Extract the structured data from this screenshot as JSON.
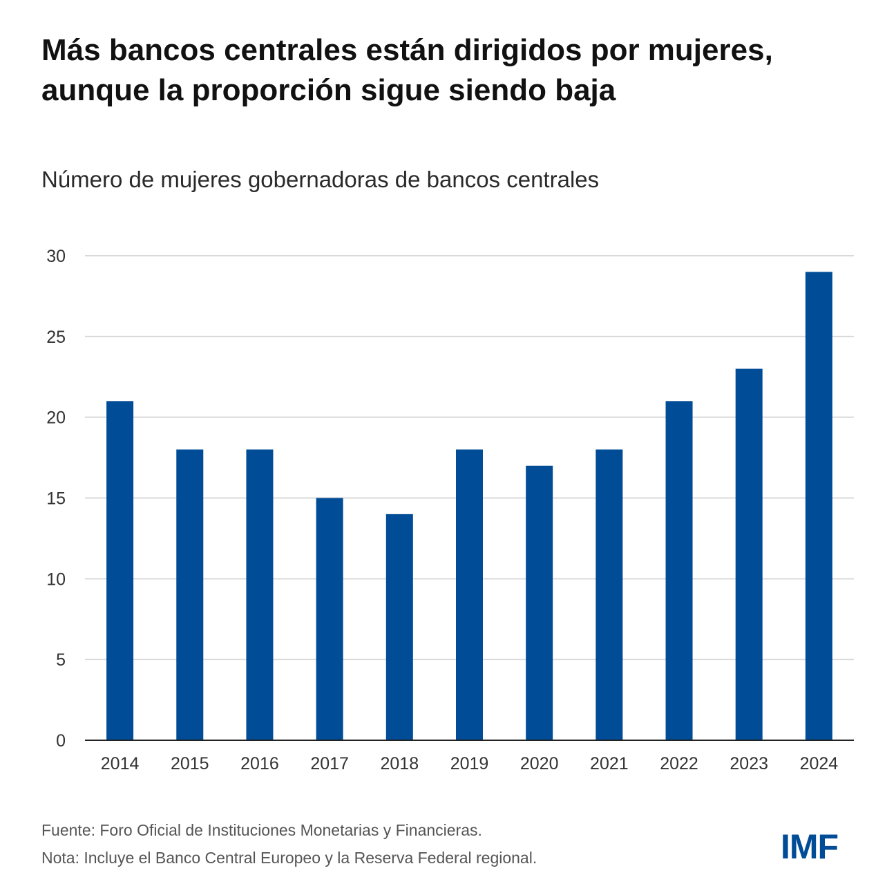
{
  "title_line1": "Más bancos centrales están dirigidos por mujeres,",
  "title_line2": "aunque la proporción sigue siendo baja",
  "subtitle": "Número de mujeres gobernadoras de bancos centrales",
  "source": "Fuente: Foro Oficial de Instituciones Monetarias y Financieras.",
  "note": "Nota: Incluye el Banco Central Europeo y la Reserva Federal regional.",
  "logo_text": "IMF",
  "colors": {
    "bar": "#004c97",
    "grid": "#d9d9d9",
    "axis": "#222222",
    "logo": "#004c97"
  },
  "chart_data": {
    "type": "bar",
    "title": "Número de mujeres gobernadoras de bancos centrales",
    "xlabel": "",
    "ylabel": "",
    "categories": [
      "2014",
      "2015",
      "2016",
      "2017",
      "2018",
      "2019",
      "2020",
      "2021",
      "2022",
      "2023",
      "2024"
    ],
    "values": [
      21,
      18,
      18,
      15,
      14,
      18,
      17,
      18,
      21,
      23,
      29
    ],
    "ylim": [
      0,
      30
    ],
    "yticks": [
      0,
      5,
      10,
      15,
      20,
      25,
      30
    ],
    "grid": true,
    "legend": "none"
  }
}
